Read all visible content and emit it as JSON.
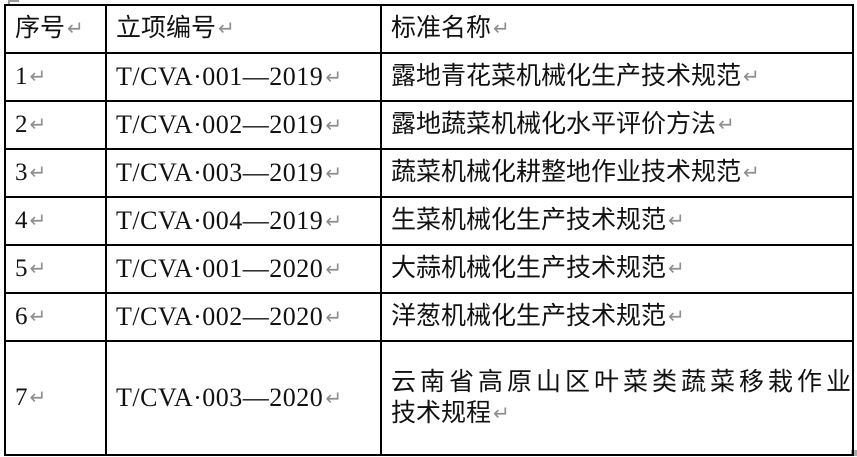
{
  "marks": {
    "paragraph": "↵"
  },
  "table": {
    "headers": {
      "seq": "序号",
      "code": "立项编号",
      "name": "标准名称"
    },
    "rows": [
      {
        "seq": "1",
        "code": "T/CVA·001—2019",
        "name": "露地青花菜机械化生产技术规范"
      },
      {
        "seq": "2",
        "code": "T/CVA·002—2019",
        "name": "露地蔬菜机械化水平评价方法"
      },
      {
        "seq": "3",
        "code": "T/CVA·003—2019",
        "name": "蔬菜机械化耕整地作业技术规范"
      },
      {
        "seq": "4",
        "code": "T/CVA·004—2019",
        "name": "生菜机械化生产技术规范"
      },
      {
        "seq": "5",
        "code": "T/CVA·001—2020",
        "name": "大蒜机械化生产技术规范"
      },
      {
        "seq": "6",
        "code": "T/CVA·002—2020",
        "name": "洋葱机械化生产技术规范"
      },
      {
        "seq": "7",
        "code": "T/CVA·003—2020",
        "name": "云南省高原山区叶菜类蔬菜移栽作业",
        "name2": "技术规程"
      }
    ]
  }
}
